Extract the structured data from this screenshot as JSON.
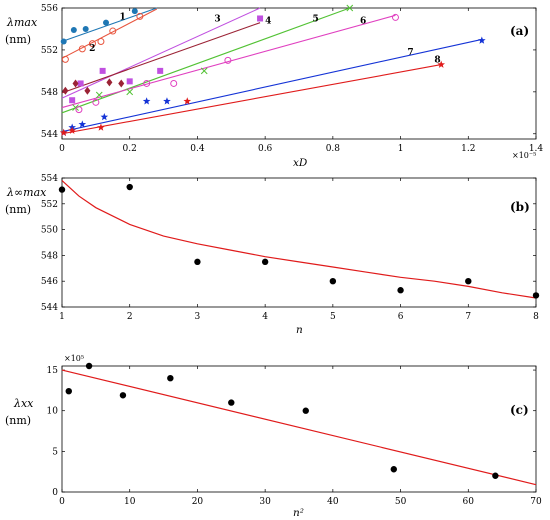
{
  "chart_data": [
    {
      "panel": "(a)",
      "type": "scatter",
      "ylabel": "λmax",
      "yunit": "(nm)",
      "xlabel": "xD",
      "x_exponent": "×10⁻⁵",
      "xlim": [
        0,
        1.4
      ],
      "ylim": [
        543.5,
        556
      ],
      "xticks": [
        "0",
        "0.2",
        "0.4",
        "0.6",
        "0.8",
        "1",
        "1.2",
        "1.4"
      ],
      "yticks": [
        "544",
        "548",
        "552",
        "556"
      ],
      "series": [
        {
          "label": "1",
          "color": "#1f77b4",
          "marker": "circle",
          "points": [
            [
              0.005,
              552.8
            ],
            [
              0.035,
              553.9
            ],
            [
              0.07,
              554.0
            ],
            [
              0.13,
              554.6
            ],
            [
              0.215,
              555.7
            ]
          ],
          "fit": [
            [
              0.0,
              552.8
            ],
            [
              0.28,
              556.0
            ]
          ]
        },
        {
          "label": "2",
          "color": "#e8553e",
          "marker": "open-circle",
          "points": [
            [
              0.01,
              551.1
            ],
            [
              0.06,
              552.1
            ],
            [
              0.09,
              552.6
            ],
            [
              0.115,
              552.8
            ],
            [
              0.15,
              553.8
            ],
            [
              0.23,
              555.2
            ]
          ],
          "fit": [
            [
              0.0,
              551.2
            ],
            [
              0.28,
              555.9
            ]
          ]
        },
        {
          "label": "3",
          "color": "#c050e0",
          "marker": "square",
          "points": [
            [
              0.03,
              547.2
            ],
            [
              0.055,
              548.8
            ],
            [
              0.12,
              550.0
            ],
            [
              0.2,
              549.0
            ],
            [
              0.29,
              550.0
            ],
            [
              0.585,
              555.0
            ]
          ],
          "fit": [
            [
              0.0,
              547.4
            ],
            [
              0.585,
              556.0
            ]
          ]
        },
        {
          "label": "4",
          "color": "#9b2335",
          "marker": "diamond",
          "points": [
            [
              0.01,
              548.1
            ],
            [
              0.04,
              548.8
            ],
            [
              0.075,
              548.1
            ],
            [
              0.14,
              548.9
            ],
            [
              0.175,
              548.8
            ]
          ],
          "fit": [
            [
              0.0,
              547.9
            ],
            [
              0.585,
              554.6
            ]
          ]
        },
        {
          "label": "5",
          "color": "#52c234",
          "marker": "x",
          "points": [
            [
              0.04,
              546.5
            ],
            [
              0.11,
              547.7
            ],
            [
              0.2,
              548.0
            ],
            [
              0.42,
              550.0
            ],
            [
              0.85,
              556.0
            ]
          ],
          "fit": [
            [
              0.0,
              546.0
            ],
            [
              0.85,
              556.0
            ]
          ]
        },
        {
          "label": "6",
          "color": "#e040c0",
          "marker": "open-circle",
          "points": [
            [
              0.05,
              546.3
            ],
            [
              0.1,
              547.0
            ],
            [
              0.25,
              548.8
            ],
            [
              0.33,
              548.8
            ],
            [
              0.49,
              551.0
            ],
            [
              0.985,
              555.1
            ]
          ],
          "fit": [
            [
              0.0,
              546.5
            ],
            [
              0.985,
              555.3
            ]
          ]
        },
        {
          "label": "7",
          "color": "#1433d6",
          "marker": "star",
          "points": [
            [
              0.005,
              544.1
            ],
            [
              0.03,
              544.6
            ],
            [
              0.06,
              544.9
            ],
            [
              0.125,
              545.6
            ],
            [
              0.25,
              547.1
            ],
            [
              0.31,
              547.1
            ],
            [
              1.24,
              552.9
            ]
          ],
          "fit": [
            [
              0.0,
              544.2
            ],
            [
              1.24,
              553.0
            ]
          ]
        },
        {
          "label": "8",
          "color": "#e01b1b",
          "marker": "star",
          "points": [
            [
              0.005,
              544.1
            ],
            [
              0.03,
              544.3
            ],
            [
              0.115,
              544.6
            ],
            [
              0.37,
              547.1
            ],
            [
              1.12,
              550.6
            ]
          ],
          "fit": [
            [
              0.0,
              544.0
            ],
            [
              1.12,
              550.6
            ]
          ]
        }
      ]
    },
    {
      "panel": "(b)",
      "type": "scatter",
      "ylabel": "λ∞max",
      "yunit": "(nm)",
      "xlabel": "n",
      "xlim": [
        1,
        8
      ],
      "ylim": [
        544,
        554
      ],
      "xticks": [
        "1",
        "2",
        "3",
        "4",
        "5",
        "6",
        "7",
        "8"
      ],
      "yticks": [
        "544",
        "546",
        "548",
        "550",
        "552",
        "554"
      ],
      "points": [
        [
          1,
          553.1
        ],
        [
          2,
          553.3
        ],
        [
          3,
          547.5
        ],
        [
          4,
          547.5
        ],
        [
          5,
          546.0
        ],
        [
          6,
          545.3
        ],
        [
          7,
          546.0
        ],
        [
          8,
          544.9
        ]
      ],
      "fit_color": "#e01b1b",
      "fit": [
        [
          1.0,
          553.8
        ],
        [
          1.25,
          552.6
        ],
        [
          1.5,
          551.7
        ],
        [
          2.0,
          550.4
        ],
        [
          2.5,
          549.5
        ],
        [
          3.0,
          548.9
        ],
        [
          3.5,
          548.4
        ],
        [
          4.0,
          547.9
        ],
        [
          4.5,
          547.5
        ],
        [
          5.0,
          547.1
        ],
        [
          5.5,
          546.7
        ],
        [
          6.0,
          546.3
        ],
        [
          6.5,
          546.0
        ],
        [
          7.0,
          545.6
        ],
        [
          7.5,
          545.1
        ],
        [
          8.0,
          544.7
        ]
      ]
    },
    {
      "panel": "(c)",
      "type": "scatter",
      "ylabel": "λxx",
      "yunit": "(nm)",
      "xlabel": "n²",
      "y_exponent": "×10⁵",
      "xlim": [
        0,
        70
      ],
      "ylim": [
        0,
        15.5
      ],
      "xticks": [
        "0",
        "10",
        "20",
        "30",
        "40",
        "50",
        "60",
        "70"
      ],
      "yticks": [
        "0",
        "5",
        "10",
        "15"
      ],
      "points": [
        [
          1,
          12.4
        ],
        [
          4,
          15.5
        ],
        [
          9,
          11.9
        ],
        [
          16,
          14.0
        ],
        [
          25,
          11.0
        ],
        [
          36,
          10.0
        ],
        [
          49,
          2.8
        ],
        [
          64,
          2.0
        ]
      ],
      "fit_color": "#e01b1b",
      "fit": [
        [
          0,
          15.0
        ],
        [
          70,
          0.9
        ]
      ]
    }
  ]
}
